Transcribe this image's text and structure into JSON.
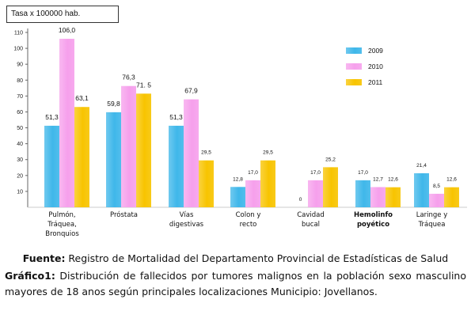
{
  "chart_data": {
    "type": "bar",
    "ylabel": "Tasa x 100000 hab.",
    "ylim": [
      0,
      110
    ],
    "yticks": [
      10,
      20,
      30,
      40,
      50,
      60,
      70,
      80,
      90,
      100,
      110
    ],
    "grid": false,
    "legend_position": "right",
    "categories": [
      [
        "Pulmón,",
        "Tráquea,",
        "Bronquios"
      ],
      [
        "Próstata"
      ],
      [
        "Vías",
        "digestivas"
      ],
      [
        "Colon y",
        "recto"
      ],
      [
        "Cavidad",
        "bucal"
      ],
      [
        "Hemolinfo",
        "poyético"
      ],
      [
        "Laringe y",
        "Tráquea"
      ]
    ],
    "series": [
      {
        "name": "2009",
        "color": "#3fb7ea",
        "values": [
          51.3,
          59.8,
          51.3,
          12.8,
          0,
          17.0,
          21.4
        ],
        "labels": [
          "51,3",
          "59,8",
          "51,3",
          "12,8",
          "0",
          "17,0",
          "21,4"
        ]
      },
      {
        "name": "2010",
        "color": "#f6a0ec",
        "values": [
          106.0,
          76.3,
          67.9,
          17.0,
          17.0,
          12.7,
          8.5
        ],
        "labels": [
          "106,0",
          "76,3",
          "67,9",
          "17,0",
          "17,0",
          "12,7",
          "8,5"
        ]
      },
      {
        "name": "2011",
        "color": "#f8c400",
        "values": [
          63.1,
          71.5,
          29.5,
          29.5,
          25.2,
          12.6,
          12.6
        ],
        "labels": [
          "63,1",
          "71. 5",
          "29,5",
          "29,5",
          "25,2",
          "12,6",
          "12,6"
        ]
      }
    ]
  },
  "caption": {
    "fuente_label": "Fuente:",
    "fuente_text": " Registro de Mortalidad del Departamento Provincial de Estadísticas de Salud",
    "grafico_label": "Gráfico1:",
    "grafico_text": " Distribución de fallecidos por tumores malignos en la población sexo masculino mayores de 18 anos según principales localizaciones Municipio: Jovellanos."
  }
}
